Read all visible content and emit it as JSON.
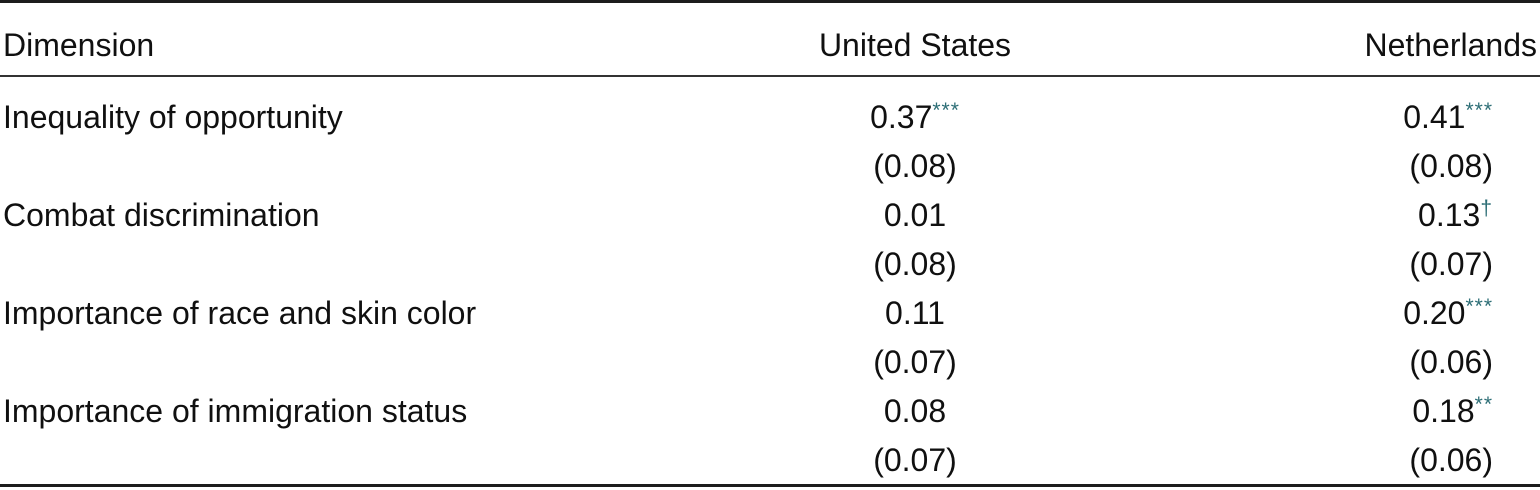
{
  "table": {
    "significance_color": "#2d6e76",
    "text_color": "#101010",
    "columns": [
      {
        "label": "Dimension"
      },
      {
        "label": "United States"
      },
      {
        "label": "Netherlands"
      }
    ],
    "rows": [
      {
        "dimension": "Inequality of opportunity",
        "united_states": {
          "estimate": "0.37",
          "significance": "***",
          "std_error": "(0.08)"
        },
        "netherlands": {
          "estimate": "0.41",
          "significance": "***",
          "std_error": "(0.08)"
        }
      },
      {
        "dimension": "Combat discrimination",
        "united_states": {
          "estimate": "0.01",
          "significance": "",
          "std_error": "(0.08)"
        },
        "netherlands": {
          "estimate": "0.13",
          "significance": "†",
          "std_error": "(0.07)"
        }
      },
      {
        "dimension": "Importance of race and skin color",
        "united_states": {
          "estimate": "0.11",
          "significance": "",
          "std_error": "(0.07)"
        },
        "netherlands": {
          "estimate": "0.20",
          "significance": "***",
          "std_error": "(0.06)"
        }
      },
      {
        "dimension": "Importance of immigration status",
        "united_states": {
          "estimate": "0.08",
          "significance": "",
          "std_error": "(0.07)"
        },
        "netherlands": {
          "estimate": "0.18",
          "significance": "**",
          "std_error": "(0.06)"
        }
      }
    ]
  }
}
